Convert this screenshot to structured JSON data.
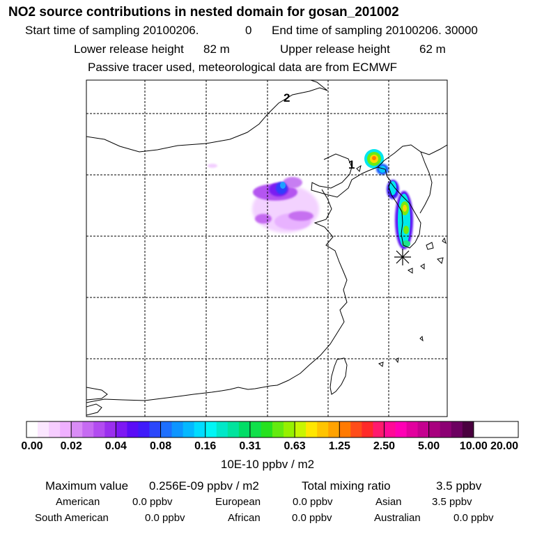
{
  "header": {
    "title": "NO2 source contributions in nested domain for gosan_201002",
    "start_label": "Start time of sampling 20100206.",
    "start_value": "0",
    "end_label": "End time of sampling 20100206. 30000",
    "lower_label": "Lower release height",
    "lower_value": "82 m",
    "upper_label": "Upper release height",
    "upper_value": "62 m",
    "note": "Passive tracer used, meteorological data are from ECMWF"
  },
  "map": {
    "labels": [
      {
        "text": "2"
      },
      {
        "text": "1"
      }
    ],
    "receptor_icon": "asterisk-marker",
    "coast_color": "#000000",
    "grid_style": "dashed"
  },
  "colorbar": {
    "ticks": [
      "0.00",
      "0.02",
      "0.04",
      "0.08",
      "0.16",
      "0.31",
      "0.63",
      "1.25",
      "2.50",
      "5.00",
      "10.00",
      "20.00"
    ],
    "colors": [
      "#ffffff",
      "#fbe6ff",
      "#f6cdff",
      "#efb0ff",
      "#d98cf6",
      "#c66bf2",
      "#b24cf0",
      "#9a2fee",
      "#7d18f3",
      "#5a0cf6",
      "#3f1bf9",
      "#2b47fb",
      "#1e6ffd",
      "#0e95ff",
      "#05b8ff",
      "#00dcff",
      "#00f5f5",
      "#00e7c8",
      "#00e39d",
      "#00dd66",
      "#10e04a",
      "#27e11f",
      "#64ea10",
      "#96f000",
      "#c8f500",
      "#ffe600",
      "#ffc400",
      "#ffa200",
      "#ff7a00",
      "#ff4d1a",
      "#ff2a2a",
      "#ff1a6e",
      "#ff0a96",
      "#ff00b4",
      "#e2009e",
      "#c4008f",
      "#a8007e",
      "#8c0073",
      "#6c0060",
      "#4a003f"
    ],
    "units": "10E-10 ppbv / m2"
  },
  "stats": {
    "max_label": "Maximum value",
    "max_value": "0.256E-09 ppbv / m2",
    "total_label": "Total mixing ratio",
    "total_value": "3.5 ppbv",
    "regions": [
      {
        "name": "American",
        "value": "0.0 ppbv"
      },
      {
        "name": "European",
        "value": "0.0 ppbv"
      },
      {
        "name": "Asian",
        "value": "3.5 ppbv"
      },
      {
        "name": "South American",
        "value": "0.0 ppbv"
      },
      {
        "name": "African",
        "value": "0.0 ppbv"
      },
      {
        "name": "Australian",
        "value": "0.0 ppbv"
      }
    ]
  }
}
